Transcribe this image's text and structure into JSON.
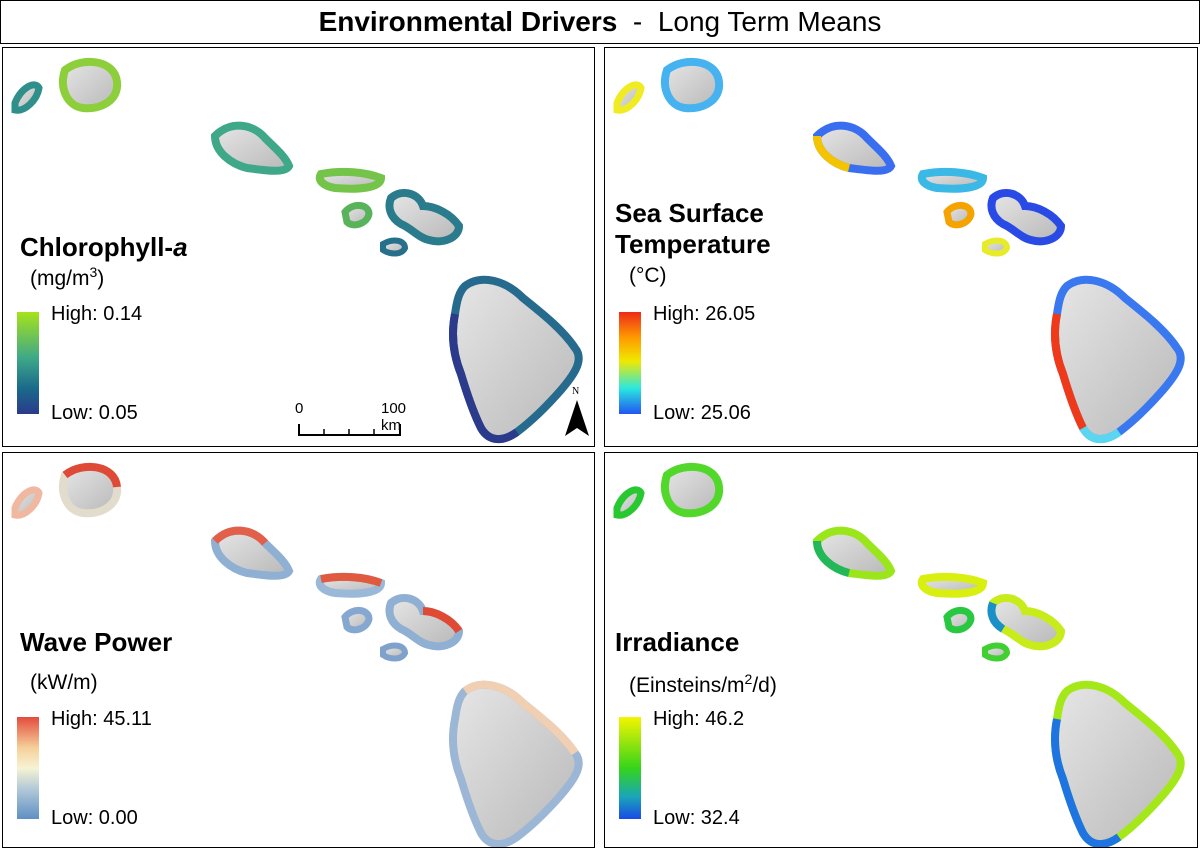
{
  "header": {
    "title_bold": "Environmental Drivers",
    "separator": "-",
    "title_rest": "Long Term Means"
  },
  "panels": [
    {
      "id": "chlorophyll",
      "title": "Chlorophyll-a",
      "title_main": "Chlorophyll-",
      "title_italic": "a",
      "unit_pre": "(mg/m",
      "unit_sup": "3",
      "unit_post": ")",
      "legend": {
        "high": "High: 0.14",
        "low": "Low: 0.05",
        "colors": [
          "#a5e31b",
          "#3fa888",
          "#1a6a8a",
          "#2b3a8c"
        ]
      }
    },
    {
      "id": "sst",
      "title_line1": "Sea Surface",
      "title_line2": "Temperature",
      "unit": "(°C)",
      "legend": {
        "high": "High: 26.05",
        "low": "Low: 25.06",
        "colors": [
          "#ee2a1a",
          "#ff9a00",
          "#f0e800",
          "#2ae7e0",
          "#2255f0"
        ]
      }
    },
    {
      "id": "wave",
      "title": "Wave Power",
      "unit": "(kW/m)",
      "legend": {
        "high": "High: 45.11",
        "low": "Low: 0.00",
        "colors": [
          "#e34b3c",
          "#f5cf9a",
          "#f6f3d3",
          "#aec6d8",
          "#5f8fc4"
        ]
      }
    },
    {
      "id": "irradiance",
      "title": "Irradiance",
      "unit_pre": "(Einsteins/m",
      "unit_sup": "2",
      "unit_post": "/d)",
      "legend": {
        "high": "High: 46.2",
        "low": "Low: 32.4",
        "colors": [
          "#f5f500",
          "#36d41a",
          "#1aa6b8",
          "#1a4ae6"
        ]
      }
    }
  ],
  "scale_bar": {
    "start": "0",
    "end": "100 km"
  },
  "north_label": "N"
}
